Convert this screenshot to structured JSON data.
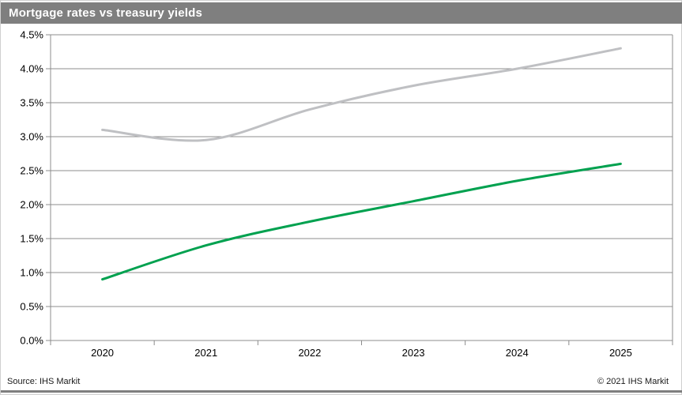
{
  "window": {
    "title": "Mortgage rates vs treasury yields"
  },
  "footer": {
    "source": "Source: IHS Markit",
    "copyright": "© 2021 IHS Markit"
  },
  "colors": {
    "title_bar_bg": "#7f7f7f",
    "title_text": "#ffffff",
    "grid": "#8c8c8c",
    "axis_text": "#000000",
    "mortgage_line": "#bfc0c3",
    "treasury_line": "#00a14f",
    "footer_bar": "#7f7f7f",
    "plot_bg": "#ffffff"
  },
  "chart_data": {
    "type": "line",
    "title": "Mortgage rates vs treasury yields",
    "categories": [
      "2020",
      "2021",
      "2022",
      "2023",
      "2024",
      "2025"
    ],
    "series": [
      {
        "name": "Mortgage rates",
        "color": "#bfc0c3",
        "values": [
          3.1,
          2.95,
          3.4,
          3.75,
          4.0,
          4.3
        ]
      },
      {
        "name": "Treasury yields",
        "color": "#00a14f",
        "values": [
          0.9,
          1.4,
          1.75,
          2.05,
          2.35,
          2.6
        ]
      }
    ],
    "xlabel": "",
    "ylabel": "",
    "ylim": [
      0.0,
      4.5
    ],
    "ytick_step": 0.5,
    "ytick_labels": [
      "0.0%",
      "0.5%",
      "1.0%",
      "1.5%",
      "2.0%",
      "2.5%",
      "3.0%",
      "3.5%",
      "4.0%",
      "4.5%"
    ],
    "grid": "horizontal",
    "legend": "none",
    "smooth": true,
    "source_note": "Source: IHS Markit",
    "copyright_note": "© 2021 IHS Markit"
  }
}
